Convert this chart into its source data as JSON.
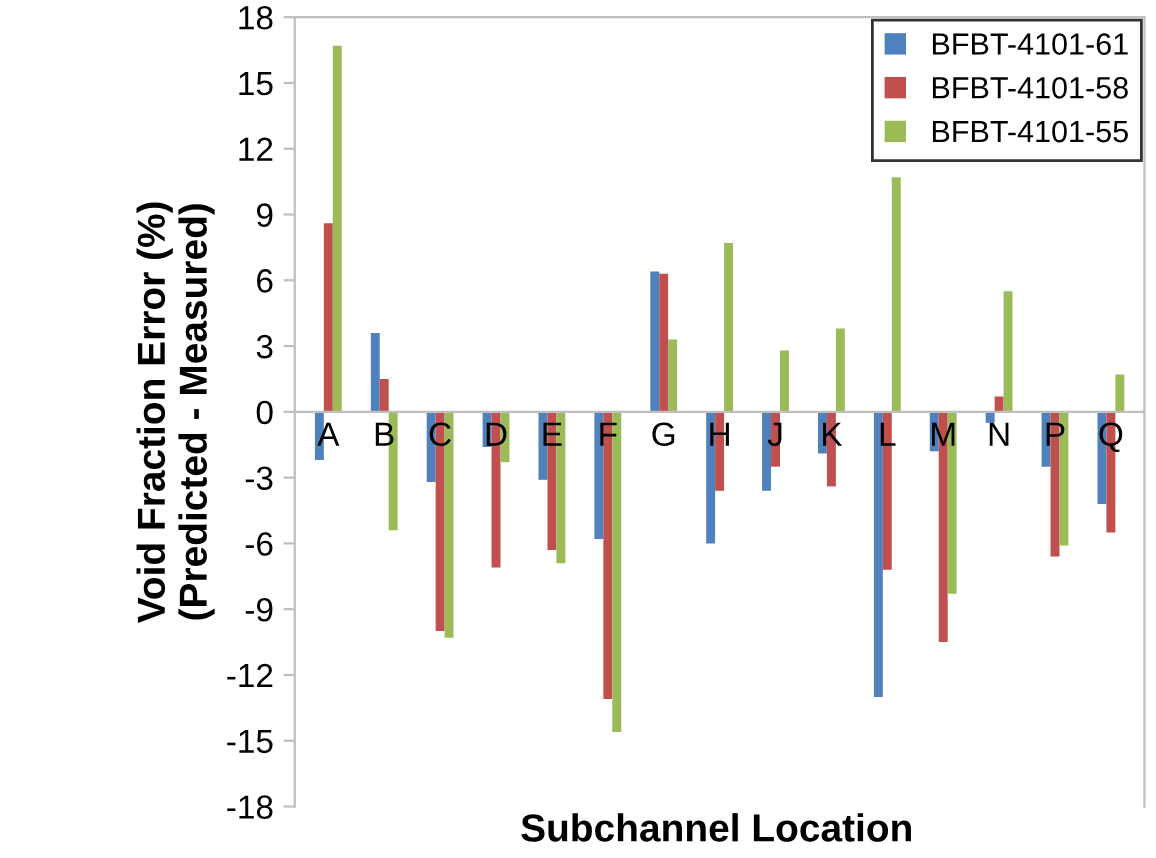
{
  "chart_data": {
    "type": "bar",
    "xlabel": "Subchannel Location",
    "ylabel": "Void Fraction Error (%)\n(Predicted - Measured)",
    "categories": [
      "A",
      "B",
      "C",
      "D",
      "E",
      "F",
      "G",
      "H",
      "J",
      "K",
      "L",
      "M",
      "N",
      "P",
      "Q"
    ],
    "series": [
      {
        "name": "BFBT-4101-61",
        "color": "#4f81bd",
        "values": [
          -2.2,
          3.6,
          -3.2,
          -1.6,
          -3.1,
          -5.8,
          6.4,
          -6.0,
          -3.6,
          -1.9,
          -13.0,
          -1.8,
          -0.5,
          -2.5,
          -4.2
        ]
      },
      {
        "name": "BFBT-4101-58",
        "color": "#c0504d",
        "values": [
          8.6,
          1.5,
          -10.0,
          -7.1,
          -6.3,
          -13.1,
          6.3,
          -3.6,
          -2.5,
          -3.4,
          -7.2,
          -10.5,
          0.7,
          -6.6,
          -5.5
        ]
      },
      {
        "name": "BFBT-4101-55",
        "color": "#9bbb59",
        "values": [
          16.7,
          -5.4,
          -10.3,
          -2.3,
          -6.9,
          -14.6,
          3.3,
          7.7,
          2.8,
          3.8,
          10.7,
          -8.3,
          5.5,
          -6.1,
          1.7
        ]
      }
    ],
    "ylim": [
      -18,
      18
    ],
    "yticks": [
      -18,
      -15,
      -12,
      -9,
      -6,
      -3,
      0,
      3,
      6,
      9,
      12,
      15,
      18
    ],
    "grid": false,
    "legend": "top right"
  }
}
